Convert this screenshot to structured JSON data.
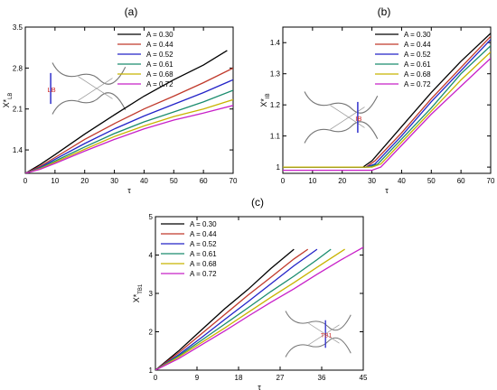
{
  "figure": {
    "background": "#ffffff",
    "axis_color": "#000000"
  },
  "chart_data": [
    {
      "type": "line",
      "panel_label": "(a)",
      "xlabel": "τ",
      "ylabel": "X*",
      "ylabel_sub": "LB",
      "xlim": [
        0,
        70
      ],
      "ylim": [
        1.0,
        3.5
      ],
      "xticks": [
        0,
        10,
        20,
        30,
        40,
        50,
        60,
        70
      ],
      "yticks": [
        1.4,
        2.1,
        2.8,
        3.5
      ],
      "ytick_decimals": 1,
      "legend_position": "top-right",
      "inset_label": "LB",
      "series": [
        {
          "name": "A = 0.30",
          "color": "#000000",
          "x": [
            0,
            5,
            10,
            20,
            30,
            40,
            50,
            60,
            68
          ],
          "y": [
            1.0,
            1.15,
            1.32,
            1.67,
            2.0,
            2.32,
            2.6,
            2.85,
            3.1
          ]
        },
        {
          "name": "A = 0.44",
          "color": "#c0392b",
          "x": [
            0,
            5,
            10,
            20,
            30,
            40,
            50,
            60,
            70
          ],
          "y": [
            1.0,
            1.12,
            1.27,
            1.58,
            1.85,
            2.1,
            2.32,
            2.55,
            2.8
          ]
        },
        {
          "name": "A = 0.52",
          "color": "#2323c8",
          "x": [
            0,
            5,
            10,
            20,
            30,
            40,
            50,
            60,
            70
          ],
          "y": [
            1.0,
            1.1,
            1.24,
            1.51,
            1.76,
            1.98,
            2.18,
            2.38,
            2.6
          ]
        },
        {
          "name": "A = 0.61",
          "color": "#1a8c6e",
          "x": [
            0,
            5,
            10,
            20,
            30,
            40,
            50,
            60,
            70
          ],
          "y": [
            1.0,
            1.09,
            1.21,
            1.45,
            1.68,
            1.88,
            2.05,
            2.22,
            2.42
          ]
        },
        {
          "name": "A = 0.68",
          "color": "#c8b400",
          "x": [
            0,
            5,
            10,
            20,
            30,
            40,
            50,
            60,
            70
          ],
          "y": [
            1.0,
            1.08,
            1.19,
            1.41,
            1.63,
            1.81,
            1.97,
            2.1,
            2.26
          ]
        },
        {
          "name": "A = 0.72",
          "color": "#c820c8",
          "x": [
            0,
            5,
            10,
            20,
            30,
            40,
            50,
            60,
            70
          ],
          "y": [
            1.0,
            1.07,
            1.17,
            1.38,
            1.58,
            1.76,
            1.91,
            2.03,
            2.16
          ]
        }
      ]
    },
    {
      "type": "line",
      "panel_label": "(b)",
      "xlabel": "τ",
      "ylabel": "X*",
      "ylabel_sub": "IB",
      "xlim": [
        0,
        70
      ],
      "ylim": [
        0.98,
        1.45
      ],
      "xticks": [
        0,
        10,
        20,
        30,
        40,
        50,
        60,
        70
      ],
      "yticks": [
        1.0,
        1.1,
        1.2,
        1.3,
        1.4
      ],
      "ytick_decimals": 1,
      "yticklabels": [
        "1",
        "1.1",
        "1.2",
        "1.3",
        "1.4"
      ],
      "legend_position": "top-right",
      "inset_label": "IB",
      "series": [
        {
          "name": "A = 0.30",
          "color": "#000000",
          "x": [
            0,
            27,
            30,
            40,
            50,
            60,
            70
          ],
          "y": [
            1.0,
            1.0,
            1.02,
            1.13,
            1.24,
            1.34,
            1.43
          ]
        },
        {
          "name": "A = 0.44",
          "color": "#c0392b",
          "x": [
            0,
            28,
            31,
            40,
            50,
            60,
            70
          ],
          "y": [
            1.0,
            1.0,
            1.02,
            1.11,
            1.22,
            1.32,
            1.42
          ]
        },
        {
          "name": "A = 0.52",
          "color": "#2323c8",
          "x": [
            0,
            28,
            31,
            40,
            50,
            60,
            70
          ],
          "y": [
            1.0,
            1.0,
            1.01,
            1.1,
            1.21,
            1.31,
            1.41
          ]
        },
        {
          "name": "A = 0.61",
          "color": "#1a8c6e",
          "x": [
            0,
            29,
            32,
            40,
            50,
            60,
            70
          ],
          "y": [
            1.0,
            1.0,
            1.01,
            1.09,
            1.19,
            1.3,
            1.39
          ]
        },
        {
          "name": "A = 0.68",
          "color": "#c8b400",
          "x": [
            0,
            30,
            33,
            40,
            50,
            60,
            70
          ],
          "y": [
            1.0,
            1.0,
            1.01,
            1.08,
            1.18,
            1.28,
            1.37
          ]
        },
        {
          "name": "A = 0.72",
          "color": "#c820c8",
          "x": [
            0,
            30,
            33,
            40,
            50,
            60,
            70
          ],
          "y": [
            0.99,
            0.99,
            1.0,
            1.07,
            1.17,
            1.26,
            1.35
          ]
        }
      ]
    },
    {
      "type": "line",
      "panel_label": "(c)",
      "xlabel": "τ",
      "ylabel": "X*",
      "ylabel_sub": "TB1",
      "xlim": [
        0,
        45
      ],
      "ylim": [
        1,
        5
      ],
      "xticks": [
        0,
        9,
        18,
        27,
        36,
        45
      ],
      "yticks": [
        1,
        2,
        3,
        4,
        5
      ],
      "ytick_decimals": 0,
      "legend_position": "top-left",
      "inset_label": "TB1",
      "series": [
        {
          "name": "A = 0.30",
          "color": "#000000",
          "x": [
            0,
            5,
            10,
            15,
            20,
            25,
            30
          ],
          "y": [
            1.0,
            1.5,
            2.05,
            2.6,
            3.1,
            3.65,
            4.15
          ]
        },
        {
          "name": "A = 0.44",
          "color": "#c0392b",
          "x": [
            0,
            5,
            10,
            15,
            20,
            25,
            30,
            33
          ],
          "y": [
            1.0,
            1.45,
            1.95,
            2.45,
            2.95,
            3.42,
            3.9,
            4.15
          ]
        },
        {
          "name": "A = 0.52",
          "color": "#2323c8",
          "x": [
            0,
            5,
            10,
            15,
            20,
            25,
            30,
            35
          ],
          "y": [
            1.0,
            1.4,
            1.85,
            2.32,
            2.78,
            3.25,
            3.72,
            4.15
          ]
        },
        {
          "name": "A = 0.61",
          "color": "#1a8c6e",
          "x": [
            0,
            5,
            10,
            15,
            20,
            25,
            30,
            35,
            38
          ],
          "y": [
            1.0,
            1.37,
            1.78,
            2.2,
            2.62,
            3.05,
            3.45,
            3.88,
            4.15
          ]
        },
        {
          "name": "A = 0.68",
          "color": "#c8b400",
          "x": [
            0,
            5,
            10,
            15,
            20,
            25,
            30,
            35,
            41
          ],
          "y": [
            1.0,
            1.34,
            1.72,
            2.1,
            2.5,
            2.9,
            3.28,
            3.68,
            4.15
          ]
        },
        {
          "name": "A = 0.72",
          "color": "#c820c8",
          "x": [
            0,
            5,
            10,
            15,
            20,
            25,
            30,
            35,
            40,
            45
          ],
          "y": [
            1.0,
            1.3,
            1.66,
            2.02,
            2.4,
            2.77,
            3.12,
            3.5,
            3.86,
            4.2
          ]
        }
      ]
    }
  ]
}
